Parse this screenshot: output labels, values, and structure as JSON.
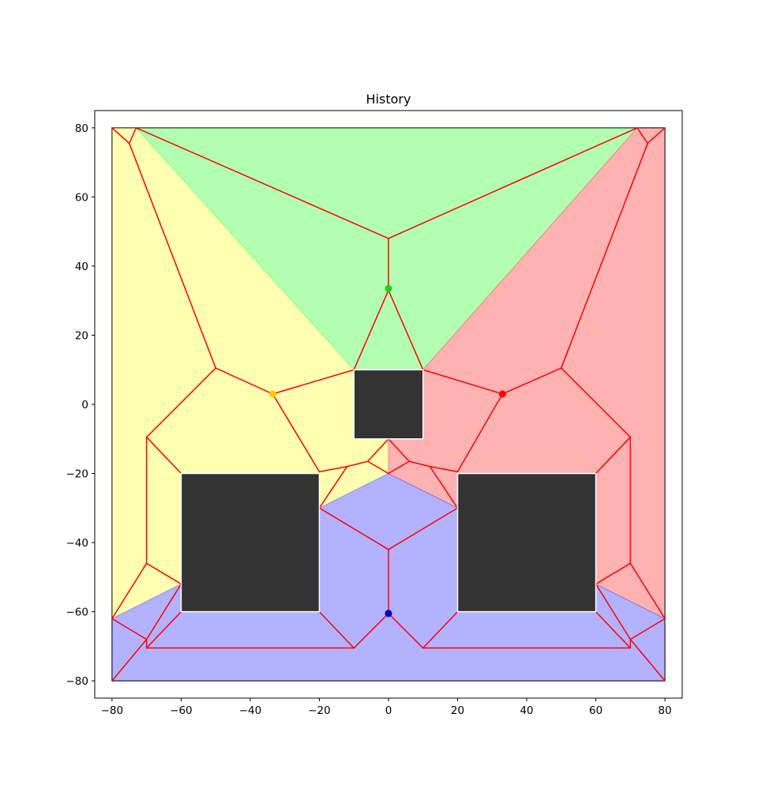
{
  "chart_data": {
    "type": "scatter",
    "title": "History",
    "xlabel": "",
    "ylabel": "",
    "xlim": [
      -85,
      85
    ],
    "ylim": [
      -85,
      85
    ],
    "xticks": [
      -80,
      -60,
      -40,
      -20,
      0,
      20,
      40,
      60,
      80
    ],
    "yticks": [
      -80,
      -60,
      -40,
      -20,
      0,
      20,
      40,
      60,
      80
    ],
    "xtick_labels": [
      "−80",
      "−60",
      "−40",
      "−20",
      "0",
      "20",
      "40",
      "60",
      "80"
    ],
    "ytick_labels": [
      "−80",
      "−60",
      "−40",
      "−20",
      "0",
      "20",
      "40",
      "60",
      "80"
    ],
    "grid": false,
    "regions": [
      {
        "color": "#ffff66",
        "points": [
          [
            -80,
            80
          ],
          [
            -73,
            80
          ],
          [
            -10,
            10
          ],
          [
            -10,
            -10
          ],
          [
            0,
            -10
          ],
          [
            0,
            -20
          ],
          [
            -20,
            -30
          ],
          [
            -60,
            -52
          ],
          [
            -80,
            -62
          ]
        ]
      },
      {
        "color": "#66ff66",
        "points": [
          [
            -73,
            80
          ],
          [
            72,
            80
          ],
          [
            10,
            10
          ],
          [
            -10,
            10
          ]
        ]
      },
      {
        "color": "#ff6666",
        "points": [
          [
            72,
            80
          ],
          [
            80,
            80
          ],
          [
            80,
            -62
          ],
          [
            60,
            -52
          ],
          [
            20,
            -30
          ],
          [
            0,
            -20
          ],
          [
            0,
            -10
          ],
          [
            10,
            -10
          ],
          [
            10,
            10
          ]
        ]
      },
      {
        "color": "#6666ff",
        "points": [
          [
            -80,
            -62
          ],
          [
            -60,
            -52
          ],
          [
            -20,
            -30
          ],
          [
            0,
            -20
          ],
          [
            20,
            -30
          ],
          [
            60,
            -52
          ],
          [
            80,
            -62
          ],
          [
            80,
            -80
          ],
          [
            -80,
            -80
          ]
        ]
      }
    ],
    "obstacles": [
      {
        "x": [
          -10,
          10
        ],
        "y": [
          -10,
          10
        ]
      },
      {
        "x": [
          -60,
          -20
        ],
        "y": [
          -60,
          -20
        ]
      },
      {
        "x": [
          20,
          60
        ],
        "y": [
          -60,
          -20
        ]
      }
    ],
    "edges": [
      [
        [
          -80,
          80
        ],
        [
          -75,
          75.5
        ]
      ],
      [
        [
          -73,
          80
        ],
        [
          -75,
          75.5
        ]
      ],
      [
        [
          -75,
          75.5
        ],
        [
          -50,
          10.5
        ]
      ],
      [
        [
          -73,
          80
        ],
        [
          0,
          48
        ]
      ],
      [
        [
          72,
          80
        ],
        [
          0,
          48
        ]
      ],
      [
        [
          0,
          48
        ],
        [
          0,
          33
        ]
      ],
      [
        [
          80,
          80
        ],
        [
          75,
          75.5
        ]
      ],
      [
        [
          72,
          80
        ],
        [
          75,
          75.5
        ]
      ],
      [
        [
          75,
          75.5
        ],
        [
          50,
          10.5
        ]
      ],
      [
        [
          -50,
          10.5
        ],
        [
          -70,
          -9.5
        ]
      ],
      [
        [
          -50,
          10.5
        ],
        [
          -33.5,
          3
        ]
      ],
      [
        [
          50,
          10.5
        ],
        [
          70,
          -9.5
        ]
      ],
      [
        [
          50,
          10.5
        ],
        [
          33,
          3
        ]
      ],
      [
        [
          0,
          33
        ],
        [
          -10,
          10
        ]
      ],
      [
        [
          0,
          33
        ],
        [
          10,
          10
        ]
      ],
      [
        [
          -10,
          10
        ],
        [
          -33.5,
          3
        ]
      ],
      [
        [
          10,
          10
        ],
        [
          33,
          3
        ]
      ],
      [
        [
          -33.5,
          3
        ],
        [
          -20,
          -19.5
        ]
      ],
      [
        [
          33,
          3
        ],
        [
          20,
          -19.5
        ]
      ],
      [
        [
          -20,
          -19.5
        ],
        [
          -12,
          -18
        ]
      ],
      [
        [
          20,
          -19.5
        ],
        [
          12,
          -18
        ]
      ],
      [
        [
          -12,
          -18
        ],
        [
          -6,
          -16.5
        ]
      ],
      [
        [
          -12,
          -18
        ],
        [
          -20,
          -30
        ]
      ],
      [
        [
          12,
          -18
        ],
        [
          6,
          -16.5
        ]
      ],
      [
        [
          12,
          -18
        ],
        [
          20,
          -30
        ]
      ],
      [
        [
          -6,
          -16.5
        ],
        [
          0,
          -10
        ]
      ],
      [
        [
          6,
          -16.5
        ],
        [
          0,
          -10
        ]
      ],
      [
        [
          -6,
          -16.5
        ],
        [
          0,
          -20
        ]
      ],
      [
        [
          6,
          -16.5
        ],
        [
          0,
          -20
        ]
      ],
      [
        [
          -70,
          -9.5
        ],
        [
          -60,
          -20
        ]
      ],
      [
        [
          -70,
          -9.5
        ],
        [
          -70,
          -46
        ]
      ],
      [
        [
          70,
          -9.5
        ],
        [
          60,
          -20
        ]
      ],
      [
        [
          70,
          -9.5
        ],
        [
          70,
          -46
        ]
      ],
      [
        [
          -70,
          -46
        ],
        [
          -60,
          -52
        ]
      ],
      [
        [
          -70,
          -46
        ],
        [
          -80,
          -62
        ]
      ],
      [
        [
          70,
          -46
        ],
        [
          60,
          -52
        ]
      ],
      [
        [
          70,
          -46
        ],
        [
          80,
          -62
        ]
      ],
      [
        [
          -80,
          -62
        ],
        [
          -70,
          -68
        ]
      ],
      [
        [
          80,
          -62
        ],
        [
          70,
          -68
        ]
      ],
      [
        [
          -70,
          -68
        ],
        [
          -80,
          -80
        ]
      ],
      [
        [
          70,
          -68
        ],
        [
          80,
          -80
        ]
      ],
      [
        [
          -70,
          -68
        ],
        [
          -70,
          -70.5
        ]
      ],
      [
        [
          70,
          -68
        ],
        [
          70,
          -70.5
        ]
      ],
      [
        [
          -60,
          -52
        ],
        [
          -70,
          -68
        ]
      ],
      [
        [
          60,
          -52
        ],
        [
          70,
          -68
        ]
      ],
      [
        [
          -60,
          -60
        ],
        [
          -70,
          -70.5
        ]
      ],
      [
        [
          60,
          -60
        ],
        [
          70,
          -70.5
        ]
      ],
      [
        [
          -70,
          -70.5
        ],
        [
          -10,
          -70.5
        ]
      ],
      [
        [
          70,
          -70.5
        ],
        [
          10,
          -70.5
        ]
      ],
      [
        [
          -20,
          -60
        ],
        [
          -10,
          -70.5
        ]
      ],
      [
        [
          20,
          -60
        ],
        [
          10,
          -70.5
        ]
      ],
      [
        [
          -10,
          -70.5
        ],
        [
          0,
          -60.5
        ]
      ],
      [
        [
          10,
          -70.5
        ],
        [
          0,
          -60.5
        ]
      ],
      [
        [
          0,
          -60.5
        ],
        [
          0,
          -42
        ]
      ],
      [
        [
          0,
          -42
        ],
        [
          -20,
          -30
        ]
      ],
      [
        [
          0,
          -42
        ],
        [
          20,
          -30
        ]
      ]
    ],
    "points": [
      {
        "x": 0,
        "y": 33.5,
        "color": "#22cc22"
      },
      {
        "x": -33.5,
        "y": 3,
        "color": "#ffcc00"
      },
      {
        "x": 33,
        "y": 3,
        "color": "#ff0000"
      },
      {
        "x": 0,
        "y": -60.5,
        "color": "#0000cc"
      }
    ],
    "colors": {
      "edge": "#ff0000",
      "obstacle": "#333333",
      "obstacle_border": "#ffffff",
      "outer_border": "#000000"
    }
  }
}
